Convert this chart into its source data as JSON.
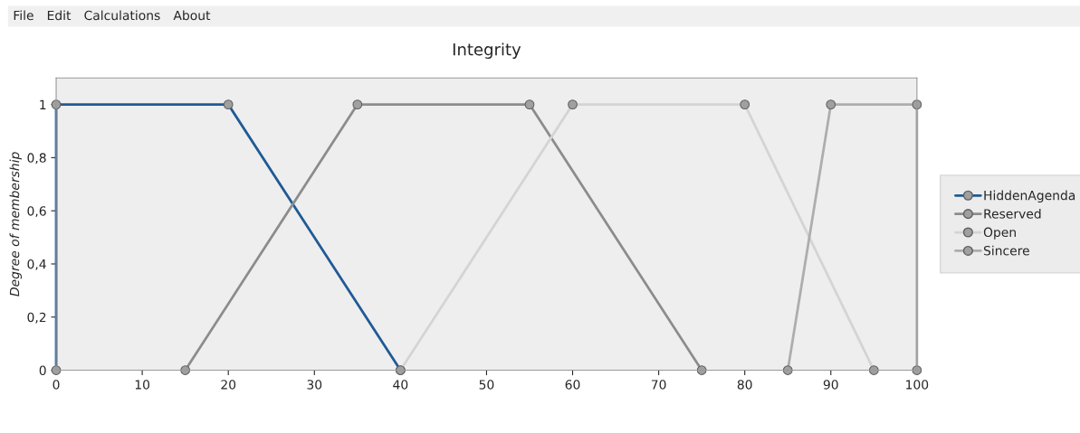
{
  "chart_data": {
    "type": "line",
    "title": "Integrity",
    "ylabel": "Degree of membership",
    "annotations": [
      "File",
      "Edit",
      "Calculations",
      "About"
    ],
    "series": [
      {
        "name": "HiddenAgenda",
        "color": "#1f5a96",
        "x": [
          0,
          0,
          20,
          40
        ],
        "values": [
          0,
          1,
          1,
          0
        ]
      },
      {
        "name": "Reserved",
        "color": "#8c8c8c",
        "x": [
          15,
          35,
          55,
          75
        ],
        "values": [
          0,
          1,
          1,
          0
        ]
      },
      {
        "name": "Open",
        "color": "#d4d4d4",
        "x": [
          40,
          60,
          80,
          95
        ],
        "values": [
          0,
          1,
          1,
          0
        ]
      },
      {
        "name": "Sincere",
        "color": "#adadad",
        "x": [
          85,
          90,
          100,
          100
        ],
        "values": [
          0,
          1,
          1,
          0
        ]
      }
    ],
    "xlim": [
      0,
      100
    ],
    "xticks": [
      0,
      10,
      20,
      30,
      40,
      50,
      60,
      70,
      80,
      90,
      100
    ],
    "ylim": [
      0,
      1.1
    ],
    "yticks": [
      0,
      {
        "value": 0.2,
        "label": "0,2"
      },
      {
        "value": 0.4,
        "label": "0,4"
      },
      {
        "value": 0.6,
        "label": "0,6"
      },
      {
        "value": 0.8,
        "label": "0,8"
      },
      1
    ],
    "grid": false,
    "legend": "right",
    "marker": "circle",
    "line_style": "solid"
  }
}
